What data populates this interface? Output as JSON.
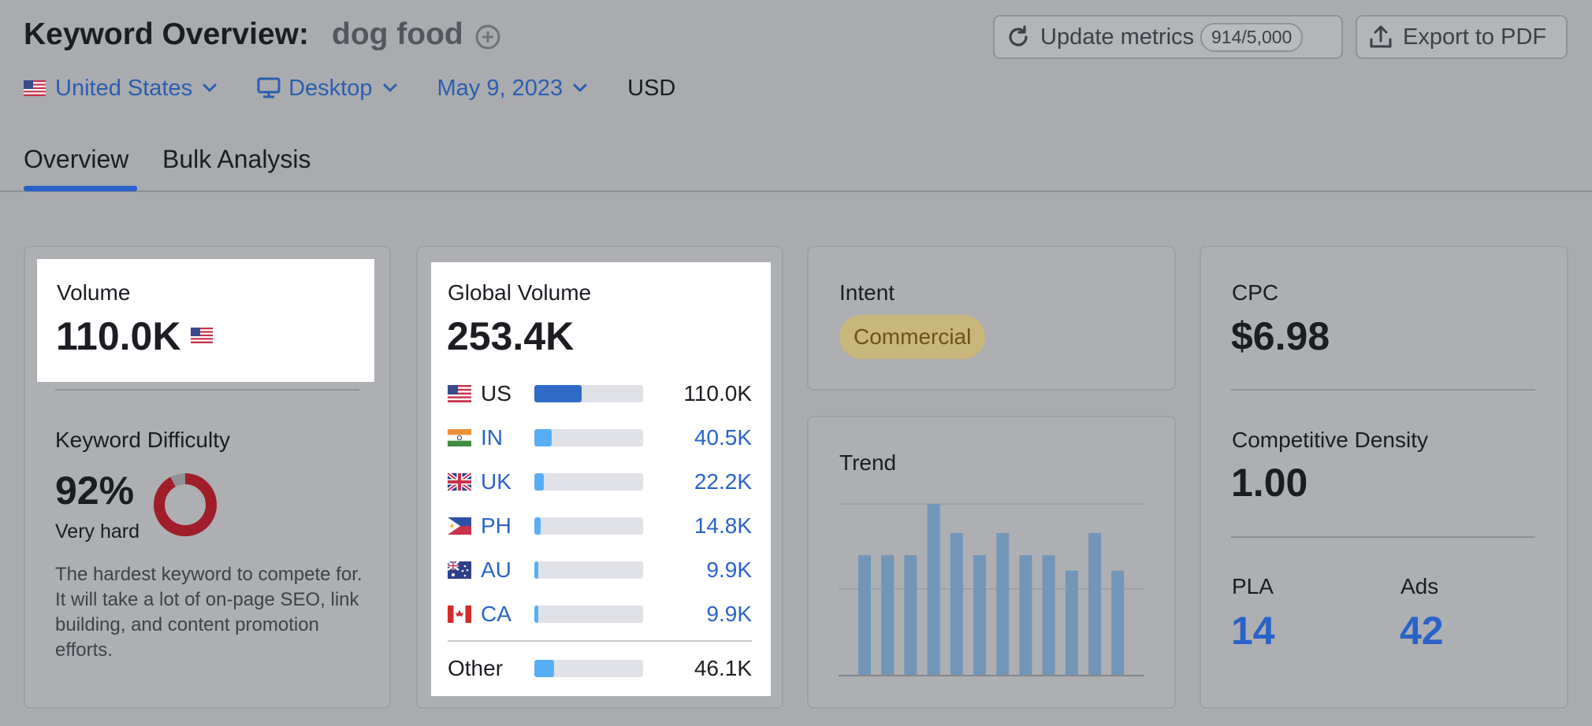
{
  "header": {
    "title": "Keyword Overview:",
    "keyword": "dog food",
    "update_label": "Update metrics",
    "update_counter": "914/5,000",
    "export_label": "Export to PDF"
  },
  "filters": {
    "country": "United States",
    "device": "Desktop",
    "date": "May 9, 2023",
    "currency": "USD"
  },
  "tabs": [
    {
      "label": "Overview",
      "active": true
    },
    {
      "label": "Bulk Analysis",
      "active": false
    }
  ],
  "volume": {
    "label": "Volume",
    "value": "110.0K",
    "flag_icon": "us-flag-icon"
  },
  "keyword_difficulty": {
    "label": "Keyword Difficulty",
    "value": "92%",
    "percent": 92,
    "level": "Very hard",
    "description": "The hardest keyword to compete for. It will take a lot of on-page SEO, link building, and content promotion efforts.",
    "color": "#a01d2a"
  },
  "global_volume": {
    "label": "Global Volume",
    "value": "253.4K",
    "rows": [
      {
        "code": "US",
        "value": "110.0K",
        "share": 0.434,
        "flag": "us-flag-icon"
      },
      {
        "code": "IN",
        "value": "40.5K",
        "share": 0.16,
        "flag": "in-flag-icon"
      },
      {
        "code": "UK",
        "value": "22.2K",
        "share": 0.088,
        "flag": "uk-flag-icon"
      },
      {
        "code": "PH",
        "value": "14.8K",
        "share": 0.058,
        "flag": "ph-flag-icon"
      },
      {
        "code": "AU",
        "value": "9.9K",
        "share": 0.039,
        "flag": "au-flag-icon"
      },
      {
        "code": "CA",
        "value": "9.9K",
        "share": 0.039,
        "flag": "ca-flag-icon"
      }
    ],
    "other": {
      "label": "Other",
      "value": "46.1K",
      "share": 0.182
    }
  },
  "intent": {
    "label": "Intent",
    "badge": "Commercial"
  },
  "trend": {
    "label": "Trend",
    "values": [
      0.7,
      0.7,
      0.7,
      1.0,
      0.83,
      0.7,
      0.83,
      0.7,
      0.7,
      0.61,
      0.83,
      0.61
    ]
  },
  "cpc": {
    "label": "CPC",
    "value": "$6.98"
  },
  "competitive_density": {
    "label": "Competitive Density",
    "value": "1.00"
  },
  "pla": {
    "label": "PLA",
    "value": "14"
  },
  "ads": {
    "label": "Ads",
    "value": "42"
  },
  "colors": {
    "accent": "#2a63c8",
    "us_bar": "#2f6bc7",
    "bar_light": "#58aef5",
    "trend_bar": "#7296b8"
  }
}
